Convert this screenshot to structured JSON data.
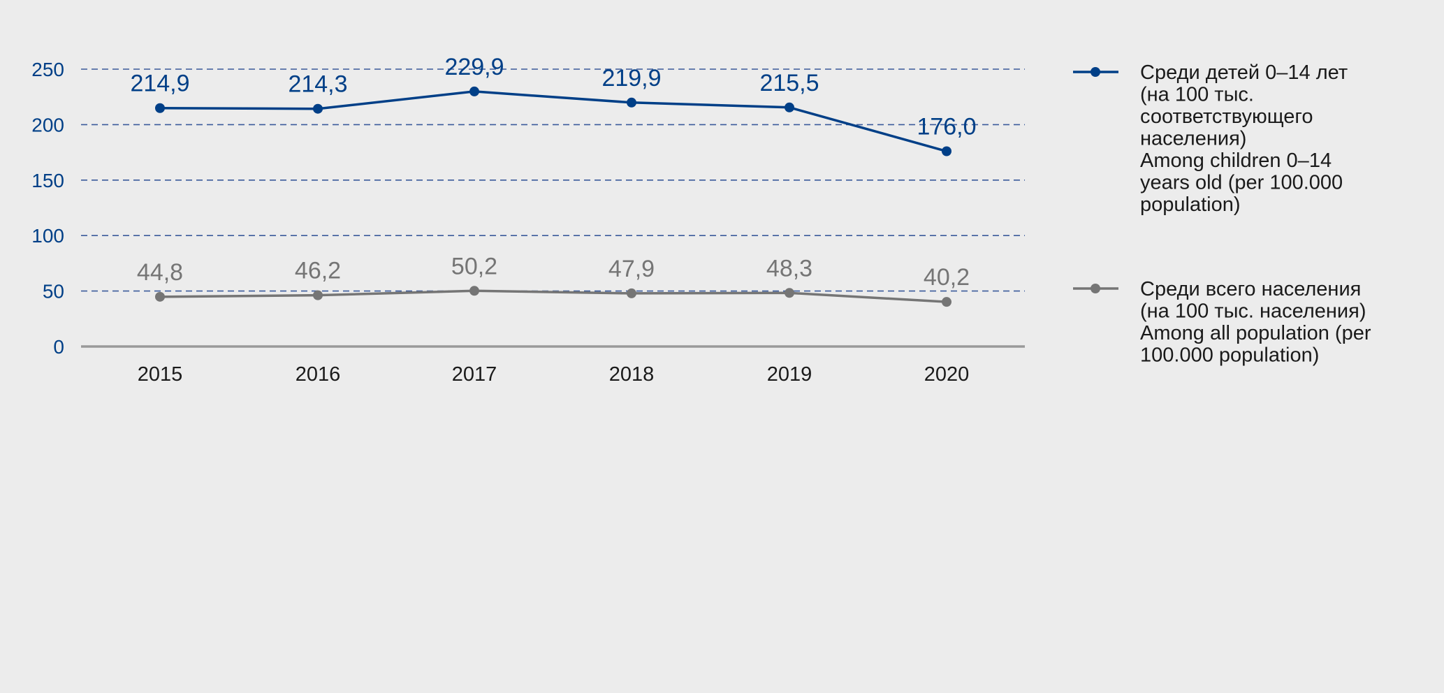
{
  "chart_data": {
    "type": "line",
    "title": "",
    "xlabel": "",
    "ylabel": "",
    "categories": [
      "2015",
      "2016",
      "2017",
      "2018",
      "2019",
      "2020"
    ],
    "ylim": [
      0,
      250
    ],
    "yticks": [
      "0",
      "50",
      "100",
      "150",
      "200",
      "250"
    ],
    "grid": true,
    "legend_position": "right",
    "series": [
      {
        "name": "Среди детей 0–14 лет (на 100 тыс. соответствующего населения) Among children 0–14 years old (per 100.000 population)",
        "legend_lines": [
          "Среди детей 0–14 лет",
          "(на 100 тыс.",
          "соответствующего",
          "населения)",
          "Among children 0–14",
          "years old (per 100.000",
          "population)"
        ],
        "color": "#003f87",
        "values": [
          214.9,
          214.3,
          229.9,
          219.9,
          215.5,
          176.0
        ],
        "labels": [
          "214,9",
          "214,3",
          "229,9",
          "219,9",
          "215,5",
          "176,0"
        ]
      },
      {
        "name": "Среди всего населения (на 100 тыс. населения) Among all population (per 100.000 population)",
        "legend_lines": [
          "Среди всего населения",
          "(на 100 тыс. населения)",
          "Among all population (per",
          "100.000 population)"
        ],
        "color": "#757575",
        "values": [
          44.8,
          46.2,
          50.2,
          47.9,
          48.3,
          40.2
        ],
        "labels": [
          "44,8",
          "46,2",
          "50,2",
          "47,9",
          "48,3",
          "40,2"
        ]
      }
    ]
  }
}
